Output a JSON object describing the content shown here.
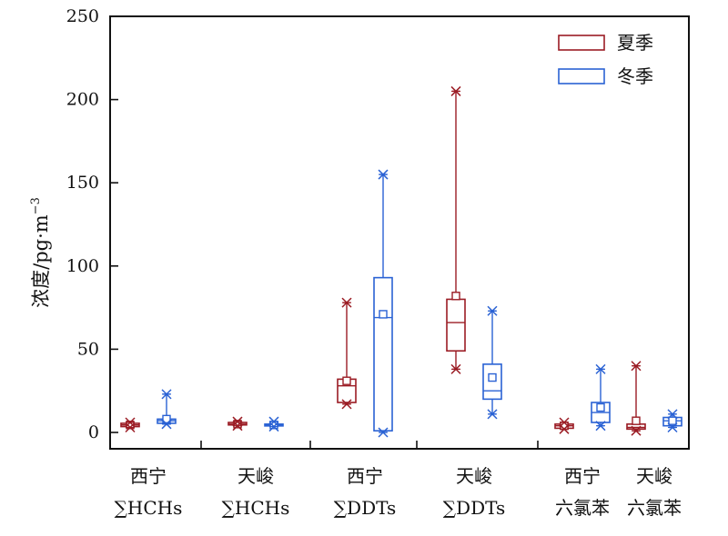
{
  "chart_data": {
    "type": "box",
    "ylabel": "浓度/pg·m",
    "ylabel_superscript": "−3",
    "ylim": [
      0,
      250
    ],
    "yticks": [
      0,
      50,
      100,
      150,
      200,
      250
    ],
    "legend": {
      "placement": "top-right",
      "entries": [
        "夏季",
        "冬季"
      ]
    },
    "colors": {
      "夏季": "#9b1c24",
      "冬季": "#2a62d4"
    },
    "categories": [
      {
        "line1": "西宁",
        "line2": "∑HCHs"
      },
      {
        "line1": "天峻",
        "line2": "∑HCHs"
      },
      {
        "line1": "西宁",
        "line2": "∑DDTs"
      },
      {
        "line1": "天峻",
        "line2": "∑DDTs"
      },
      {
        "line1": "西宁",
        "line2": "六氯苯"
      },
      {
        "line1": "天峻",
        "line2": "六氯苯"
      }
    ],
    "series": [
      {
        "name": "夏季",
        "boxes": [
          {
            "min": 3,
            "q1": 3.5,
            "median": 4.5,
            "q3": 5.5,
            "max": 6,
            "mean": 4.5
          },
          {
            "min": 4,
            "q1": 4.5,
            "median": 5,
            "q3": 6,
            "max": 6.5,
            "mean": 5
          },
          {
            "min": 17,
            "q1": 18,
            "median": 28,
            "q3": 32,
            "max": 78,
            "mean": 31
          },
          {
            "min": 38,
            "q1": 49,
            "median": 66,
            "q3": 80,
            "max": 205,
            "mean": 82
          },
          {
            "min": 2,
            "q1": 2.5,
            "median": 4,
            "q3": 5,
            "max": 6,
            "mean": 4
          },
          {
            "min": 1,
            "q1": 2,
            "median": 3,
            "q3": 5,
            "max": 40,
            "mean": 7
          }
        ]
      },
      {
        "name": "冬季",
        "boxes": [
          {
            "min": 5,
            "q1": 5.5,
            "median": 7,
            "q3": 8,
            "max": 23,
            "mean": 8
          },
          {
            "min": 3.5,
            "q1": 4,
            "median": 4.5,
            "q3": 5,
            "max": 6.5,
            "mean": 4.5
          },
          {
            "min": 0,
            "q1": 1,
            "median": 69,
            "q3": 93,
            "max": 155,
            "mean": 71
          },
          {
            "min": 11,
            "q1": 20,
            "median": 25,
            "q3": 41,
            "max": 73,
            "mean": 33
          },
          {
            "min": 4,
            "q1": 6,
            "median": 12,
            "q3": 18,
            "max": 38,
            "mean": 15
          },
          {
            "min": 3,
            "q1": 4,
            "median": 7,
            "q3": 9,
            "max": 11,
            "mean": 7
          }
        ]
      }
    ]
  }
}
